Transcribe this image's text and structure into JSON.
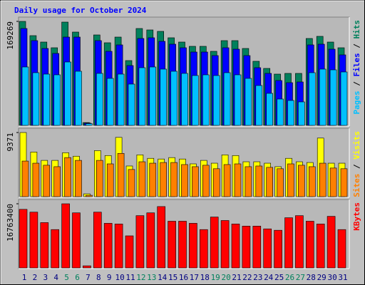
{
  "chart_data": [
    {
      "type": "bar",
      "title": "Daily usage for October 2024",
      "legend_separator": "/",
      "ylim": [
        0,
        169269
      ],
      "yticks": [
        169269
      ],
      "series": [
        {
          "name": "Hits",
          "color": "#00805c",
          "values": [
            169269,
            146080,
            135650,
            126370,
            168110,
            151880,
            4600,
            147240,
            134490,
            143760,
            105500,
            157680,
            155360,
            153040,
            142610,
            135650,
            128690,
            128690,
            120580,
            137970,
            137970,
            125210,
            104350,
            92750,
            83480,
            84640,
            84640,
            141450,
            144930,
            135650,
            126370
          ]
        },
        {
          "name": "Files",
          "color": "#0000ff",
          "values": [
            157680,
            137970,
            125210,
            117100,
            143760,
            143760,
            3800,
            137970,
            120580,
            131010,
            97390,
            141450,
            142610,
            136810,
            132170,
            126370,
            119420,
            119420,
            113620,
            126370,
            124060,
            113620,
            93910,
            84640,
            73040,
            69560,
            70720,
            131010,
            132170,
            124060,
            114780
          ]
        },
        {
          "name": "Pages",
          "color": "#00c0ff",
          "values": [
            95070,
            85790,
            83470,
            82320,
            103180,
            88110,
            2900,
            84640,
            76520,
            83470,
            67240,
            93910,
            95070,
            91590,
            88110,
            84640,
            81160,
            82320,
            81160,
            85790,
            82320,
            76520,
            64930,
            52170,
            42900,
            40580,
            38260,
            85790,
            91590,
            90430,
            86960
          ]
        }
      ]
    },
    {
      "type": "bar",
      "legend_separator": "/",
      "ylim": [
        0,
        9371
      ],
      "yticks": [
        9371
      ],
      "series": [
        {
          "name": "Visits",
          "color": "#ffff00",
          "values": [
            9371,
            6520,
            5300,
            5300,
            6420,
            5910,
            410,
            6730,
            6010,
            8660,
            4480,
            6110,
            5600,
            5500,
            5710,
            5500,
            4790,
            5300,
            4890,
            6110,
            6010,
            5100,
            5100,
            4890,
            4380,
            5600,
            5100,
            4990,
            8560,
            4890,
            4890
          ]
        },
        {
          "name": "Sites",
          "color": "#ff8000",
          "values": [
            5200,
            4890,
            4590,
            4380,
            5710,
            5300,
            200,
            5300,
            4790,
            6320,
            3970,
            5100,
            4890,
            4990,
            4990,
            4690,
            4380,
            4590,
            4080,
            4690,
            4790,
            4380,
            4480,
            4280,
            4080,
            4790,
            4590,
            4380,
            4890,
            4180,
            4080
          ]
        }
      ]
    },
    {
      "type": "bar",
      "ylim": [
        0,
        16763400
      ],
      "yticks": [
        16763400
      ],
      "categories": [
        "1",
        "2",
        "3",
        "4",
        "5",
        "6",
        "7",
        "8",
        "9",
        "10",
        "11",
        "12",
        "13",
        "14",
        "15",
        "16",
        "17",
        "18",
        "19",
        "20",
        "21",
        "22",
        "23",
        "24",
        "25",
        "26",
        "27",
        "28",
        "29",
        "30",
        "31"
      ],
      "category_label_colors": [
        "#000080",
        "#000080",
        "#000080",
        "#000080",
        "#00805c",
        "#00805c",
        "#000080",
        "#000080",
        "#000080",
        "#000080",
        "#000080",
        "#00805c",
        "#00805c",
        "#000080",
        "#000080",
        "#000080",
        "#000080",
        "#000080",
        "#00805c",
        "#00805c",
        "#000080",
        "#000080",
        "#000080",
        "#000080",
        "#000080",
        "#00805c",
        "#00805c",
        "#000080",
        "#000080",
        "#000080",
        "#000080"
      ],
      "series": [
        {
          "name": "KBytes",
          "color": "#ff0000",
          "values": [
            15305700,
            14576900,
            11843700,
            10021600,
            16763400,
            14394700,
            546600,
            14576900,
            11661500,
            11479300,
            8381700,
            13665800,
            14394700,
            16034600,
            12208100,
            12208100,
            11661500,
            10021600,
            13301400,
            12390300,
            11479300,
            10932700,
            10932700,
            10203800,
            9839400,
            13119200,
            13665800,
            12208100,
            11479300,
            13483600,
            10021600
          ]
        }
      ]
    }
  ]
}
